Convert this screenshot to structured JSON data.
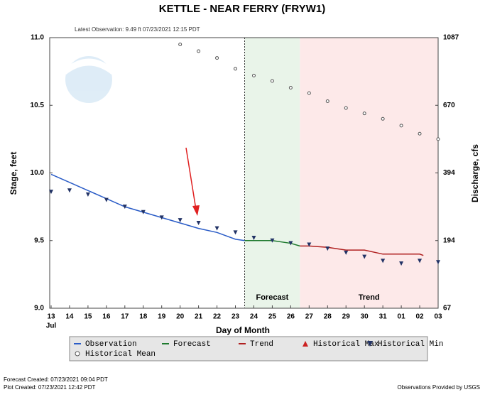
{
  "chart_data": {
    "type": "line",
    "title": "KETTLE - NEAR FERRY  (FRYW1)",
    "annotation": "Latest Observation: 9.49 ft 07/23/2021 12:15 PDT",
    "xlabel": "Day of Month",
    "ylabel": "Stage, feet",
    "y2label": "Discharge, cfs",
    "x_sublabel": "Jul",
    "xlim": [
      13,
      34
    ],
    "xticks": [
      13,
      14,
      15,
      16,
      17,
      18,
      19,
      20,
      21,
      22,
      23,
      24,
      25,
      26,
      27,
      28,
      29,
      30,
      31,
      {
        "value": 32,
        "label": "01"
      },
      {
        "value": 33,
        "label": "02"
      },
      {
        "value": 34,
        "label": "03"
      }
    ],
    "ylim": [
      9.0,
      11.0
    ],
    "yticks": [
      {
        "value": 9.0,
        "label": "9.0"
      },
      9.5,
      {
        "value": 10.0,
        "label": "10.0"
      },
      10.5,
      {
        "value": 11.0,
        "label": "11.0"
      }
    ],
    "y2ticks": [
      67,
      194,
      394,
      670,
      1087
    ],
    "regions": [
      {
        "name": "Forecast",
        "from": 23.5,
        "to": 26.5,
        "color": "#e9f4e9"
      },
      {
        "name": "Trend",
        "from": 26.5,
        "to": 34,
        "color": "#fde9e9"
      }
    ],
    "series": [
      {
        "name": "Observation",
        "color": "#2a5cc7",
        "style": "line",
        "x": [
          13,
          14,
          15,
          16,
          17,
          18,
          19,
          20,
          21,
          22,
          23,
          23.5
        ],
        "values": [
          9.99,
          9.93,
          9.87,
          9.81,
          9.75,
          9.71,
          9.67,
          9.63,
          9.59,
          9.56,
          9.51,
          9.5
        ]
      },
      {
        "name": "Forecast",
        "color": "#1e7a2e",
        "style": "line",
        "x": [
          23.5,
          24,
          25,
          26,
          26.5
        ],
        "values": [
          9.5,
          9.5,
          9.5,
          9.48,
          9.46
        ]
      },
      {
        "name": "Trend",
        "color": "#b02020",
        "style": "line",
        "x": [
          26.5,
          27,
          28,
          29,
          30,
          31,
          32,
          33,
          33.2
        ],
        "values": [
          9.46,
          9.46,
          9.45,
          9.43,
          9.43,
          9.4,
          9.4,
          9.4,
          9.39
        ]
      },
      {
        "name": "Historical Max",
        "color": "#cc2222",
        "style": "triangle-up",
        "x": [],
        "values": []
      },
      {
        "name": "Historical Min",
        "color": "#223366",
        "style": "triangle-down",
        "x": [
          13,
          14,
          15,
          16,
          17,
          18,
          19,
          20,
          21,
          22,
          23,
          24,
          25,
          26,
          27,
          28,
          29,
          30,
          31,
          32,
          33,
          34
        ],
        "values": [
          9.86,
          9.87,
          9.84,
          9.8,
          9.75,
          9.71,
          9.67,
          9.65,
          9.63,
          9.59,
          9.56,
          9.52,
          9.5,
          9.48,
          9.47,
          9.44,
          9.41,
          9.38,
          9.35,
          9.33,
          9.35,
          9.34
        ]
      },
      {
        "name": "Historical Mean",
        "color": "#555555",
        "style": "circle",
        "x": [
          20,
          21,
          22,
          23,
          24,
          25,
          26,
          27,
          28,
          29,
          30,
          31,
          32,
          33,
          34
        ],
        "values": [
          10.95,
          10.9,
          10.85,
          10.77,
          10.72,
          10.68,
          10.63,
          10.59,
          10.53,
          10.48,
          10.44,
          10.4,
          10.35,
          10.29,
          10.25
        ]
      }
    ],
    "footer_left": [
      "Forecast Created: 07/23/2021 09:04 PDT",
      "Plot Created: 07/23/2021 12:42 PDT"
    ],
    "footer_right": "Observations Provided by USGS"
  }
}
